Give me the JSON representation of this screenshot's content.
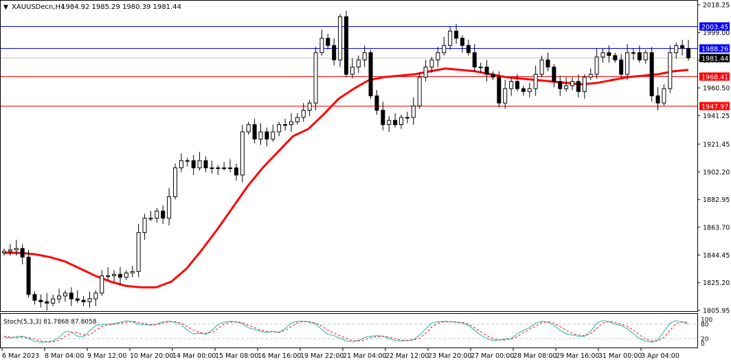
{
  "header": {
    "symbol_label": "XAUUSDecn,H4",
    "ohlc": "1984.92 1985.29 1980.39 1981.44",
    "arrow": "▼"
  },
  "price_axis": {
    "ticks": [
      "2018.25",
      "1999.00",
      "1979.75",
      "1960.50",
      "1941.25",
      "1921.45",
      "1902.20",
      "1882.95",
      "1863.70",
      "1844.45",
      "1825.20",
      "1805.95"
    ],
    "tick_values": [
      2018.25,
      1999.0,
      1979.75,
      1960.5,
      1941.25,
      1921.45,
      1902.2,
      1882.95,
      1863.7,
      1844.45,
      1825.2,
      1805.95
    ]
  },
  "levels": [
    {
      "label": "2003.45",
      "value": 2003.45,
      "color": "#0000ff",
      "text_color": "#ffffff"
    },
    {
      "label": "1988.26",
      "value": 1988.26,
      "color": "#0000ff",
      "text_color": "#ffffff"
    },
    {
      "label": "1981.44",
      "value": 1981.44,
      "color": "#000000",
      "text_color": "#ffffff",
      "line_color": "#c0c0c0"
    },
    {
      "label": "1968.41",
      "value": 1968.41,
      "color": "#ff0000",
      "text_color": "#ffffff"
    },
    {
      "label": "1947.97",
      "value": 1947.97,
      "color": "#ff0000",
      "text_color": "#ffffff"
    }
  ],
  "stoch": {
    "label": "Stoch(5,3,3) 81.7868 87.8058",
    "levels": [
      "100",
      "80",
      "20",
      "0"
    ],
    "main_color": "#20b2aa",
    "signal_color": "#ff0000"
  },
  "time_axis": {
    "labels": [
      "6 Mar 2023",
      "8 Mar 04:00",
      "9 Mar 12:00",
      "10 Mar 20:00",
      "14 Mar 00:00",
      "15 Mar 08:00",
      "16 Mar 16:00",
      "19 Mar 22:00",
      "21 Mar 04:00",
      "22 Mar 12:00",
      "23 Mar 20:00",
      "27 Mar 00:00",
      "28 Mar 08:00",
      "29 Mar 16:00",
      "31 Mar 00:00",
      "3 Apr 04:00"
    ]
  },
  "chart_data": [
    {
      "type": "candlestick",
      "title": "XAUUSDecn,H4",
      "subtitle": "1984.92 1985.29 1980.39 1981.44",
      "xlabel": "",
      "ylabel": "",
      "ylim": [
        1805.95,
        2018.25
      ],
      "x_tick_labels": [
        "6 Mar 2023",
        "8 Mar 04:00",
        "9 Mar 12:00",
        "10 Mar 20:00",
        "14 Mar 00:00",
        "15 Mar 08:00",
        "16 Mar 16:00",
        "19 Mar 22:00",
        "21 Mar 04:00",
        "22 Mar 12:00",
        "23 Mar 20:00",
        "27 Mar 00:00",
        "28 Mar 08:00",
        "29 Mar 16:00",
        "31 Mar 00:00",
        "3 Apr 04:00"
      ],
      "horizontal_levels": [
        2003.45,
        1988.26,
        1981.44,
        1968.41,
        1947.97
      ],
      "series": [
        {
          "name": "close_approx",
          "values": [
            1847,
            1848,
            1849,
            1843,
            1817,
            1813,
            1812,
            1811,
            1814,
            1816,
            1818,
            1814,
            1813,
            1812,
            1814,
            1818,
            1830,
            1830,
            1831,
            1829,
            1832,
            1833,
            1860,
            1870,
            1870,
            1875,
            1870,
            1885,
            1905,
            1910,
            1910,
            1905,
            1910,
            1905,
            1905,
            1905,
            1905,
            1905,
            1900,
            1930,
            1935,
            1925,
            1930,
            1925,
            1930,
            1935,
            1935,
            1937,
            1940,
            1945,
            1950,
            1985,
            1995,
            1990,
            1980,
            2010,
            1970,
            1975,
            1980,
            1985,
            1955,
            1945,
            1935,
            1938,
            1935,
            1940,
            1940,
            1948,
            1968,
            1975,
            1980,
            1985,
            1990,
            2000,
            1995,
            1990,
            1985,
            1975,
            1975,
            1970,
            1968,
            1950,
            1960,
            1965,
            1960,
            1958,
            1960,
            1970,
            1980,
            1975,
            1965,
            1960,
            1962,
            1965,
            1958,
            1968,
            1970,
            1982,
            1985,
            1983,
            1980,
            1970,
            1985,
            1985,
            1980,
            1985,
            1955,
            1950,
            1960,
            1985,
            1990,
            1988,
            1981.44
          ]
        },
        {
          "name": "MA (red)",
          "color": "#ff0000",
          "values": [
            1846,
            1846,
            1845,
            1843,
            1840,
            1835,
            1830,
            1826,
            1823,
            1822,
            1822,
            1826,
            1835,
            1848,
            1862,
            1877,
            1892,
            1905,
            1916,
            1927,
            1932,
            1942,
            1953,
            1960,
            1966,
            1968,
            1969,
            1970,
            1972,
            1974,
            1973,
            1972,
            1970,
            1968,
            1967,
            1966,
            1965,
            1964,
            1963,
            1964,
            1966,
            1968,
            1969,
            1970,
            1972,
            1973
          ]
        }
      ]
    },
    {
      "type": "line",
      "title": "Stoch(5,3,3) 81.7868 87.8058",
      "ylim": [
        0,
        100
      ],
      "y_ticks": [
        0,
        20,
        80,
        100
      ],
      "series": [
        {
          "name": "%K",
          "color": "#20b2aa",
          "values": [
            27,
            22,
            28,
            30,
            20,
            8,
            5,
            6,
            10,
            25,
            50,
            48,
            30,
            28,
            52,
            75,
            78,
            80,
            82,
            88,
            94,
            90,
            80,
            78,
            76,
            80,
            90,
            92,
            88,
            78,
            55,
            40,
            42,
            38,
            55,
            78,
            88,
            92,
            90,
            82,
            65,
            58,
            50,
            45,
            50,
            45,
            62,
            85,
            92,
            92,
            88,
            80,
            58,
            38,
            32,
            22,
            10,
            8,
            12,
            25,
            30,
            32,
            30,
            20,
            12,
            10,
            12,
            16,
            35,
            60,
            85,
            90,
            92,
            90,
            88,
            85,
            75,
            55,
            35,
            20,
            12,
            14,
            18,
            20,
            40,
            55,
            65,
            85,
            92,
            88,
            75,
            55,
            40,
            35,
            30,
            30,
            50,
            85,
            95,
            90,
            80,
            75,
            60,
            40,
            20,
            10,
            5,
            15,
            50,
            85,
            95,
            88,
            81.79
          ]
        },
        {
          "name": "%D",
          "color": "#ff0000",
          "style": "dashed",
          "values": [
            30,
            27,
            24,
            26,
            25,
            18,
            10,
            6,
            7,
            14,
            30,
            45,
            45,
            35,
            35,
            55,
            70,
            77,
            80,
            84,
            88,
            91,
            88,
            82,
            78,
            78,
            84,
            90,
            90,
            85,
            70,
            55,
            45,
            42,
            45,
            62,
            80,
            88,
            90,
            86,
            75,
            65,
            55,
            50,
            48,
            47,
            53,
            70,
            86,
            92,
            90,
            85,
            72,
            55,
            42,
            32,
            20,
            12,
            10,
            15,
            24,
            28,
            30,
            27,
            20,
            14,
            12,
            14,
            22,
            42,
            68,
            84,
            90,
            90,
            89,
            87,
            80,
            65,
            48,
            32,
            20,
            14,
            15,
            18,
            28,
            45,
            58,
            72,
            86,
            90,
            84,
            70,
            55,
            42,
            35,
            32,
            40,
            62,
            85,
            92,
            88,
            80,
            70,
            55,
            35,
            18,
            10,
            10,
            25,
            55,
            82,
            90,
            87.81
          ]
        }
      ]
    }
  ]
}
